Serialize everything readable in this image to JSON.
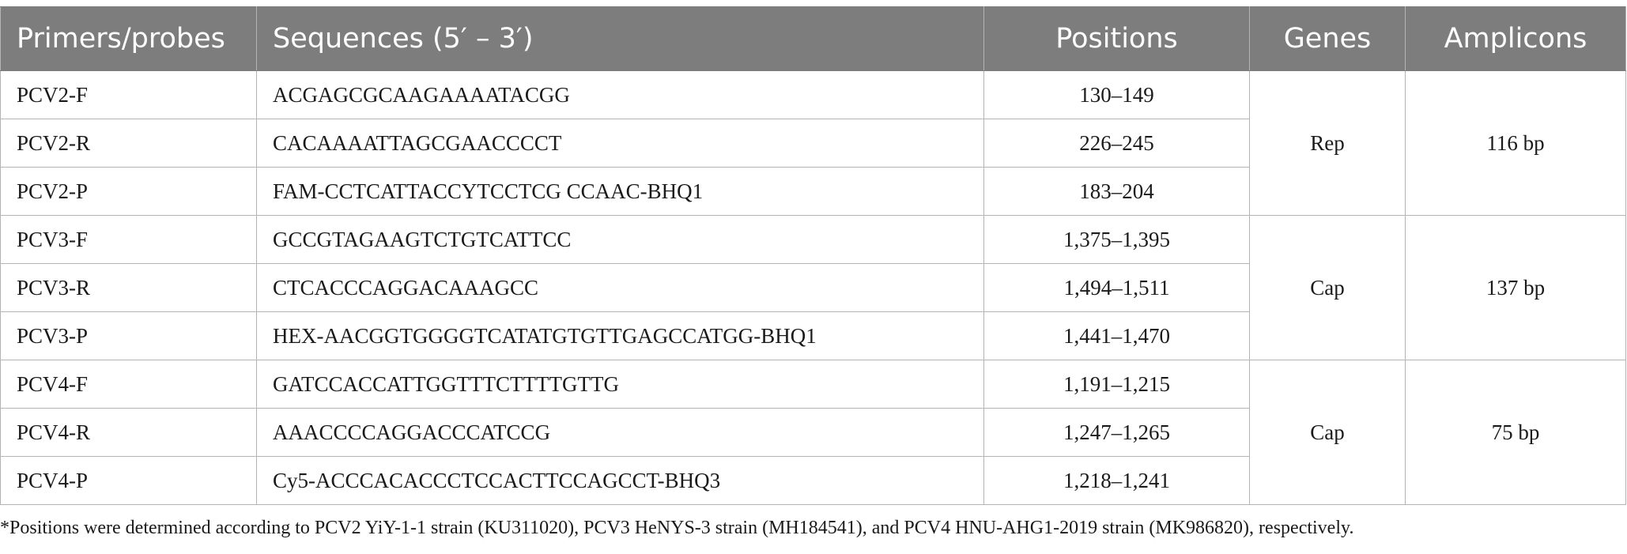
{
  "table": {
    "headers": [
      "Primers/probes",
      "Sequences (5′ – 3′)",
      "Positions",
      "Genes",
      "Amplicons"
    ],
    "groups": [
      {
        "gene": "Rep",
        "amplicon": "116 bp",
        "rows": [
          {
            "primer": "PCV2-F",
            "sequence": "ACGAGCGCAAGAAAATACGG",
            "position": "130–149"
          },
          {
            "primer": "PCV2-R",
            "sequence": "CACAAAATTAGCGAACCCCT",
            "position": "226–245"
          },
          {
            "primer": "PCV2-P",
            "sequence": "FAM-CCTCATTACCYTCCTCG CCAAC-BHQ1",
            "position": "183–204"
          }
        ]
      },
      {
        "gene": "Cap",
        "amplicon": "137 bp",
        "rows": [
          {
            "primer": "PCV3-F",
            "sequence": "GCCGTAGAAGTCTGTCATTCC",
            "position": "1,375–1,395"
          },
          {
            "primer": "PCV3-R",
            "sequence": "CTCACCCAGGACAAAGCC",
            "position": "1,494–1,511"
          },
          {
            "primer": "PCV3-P",
            "sequence": "HEX-AACGGTGGGGTCATATGTGTTGAGCCATGG-BHQ1",
            "position": "1,441–1,470"
          }
        ]
      },
      {
        "gene": "Cap",
        "amplicon": "75 bp",
        "rows": [
          {
            "primer": "PCV4-F",
            "sequence": "GATCCACCATTGGTTTCTTTTGTTG",
            "position": "1,191–1,215"
          },
          {
            "primer": "PCV4-R",
            "sequence": "AAACCCCAGGACCCATCCG",
            "position": "1,247–1,265"
          },
          {
            "primer": "PCV4-P",
            "sequence": "Cy5-ACCCACACCCTCCACTTCCAGCCT-BHQ3",
            "position": "1,218–1,241"
          }
        ]
      }
    ]
  },
  "footnote": "*Positions were determined according to PCV2 YiY-1-1 strain (KU311020), PCV3 HeNYS-3 strain (MH184541), and PCV4 HNU-AHG1-2019 strain (MK986820), respectively."
}
